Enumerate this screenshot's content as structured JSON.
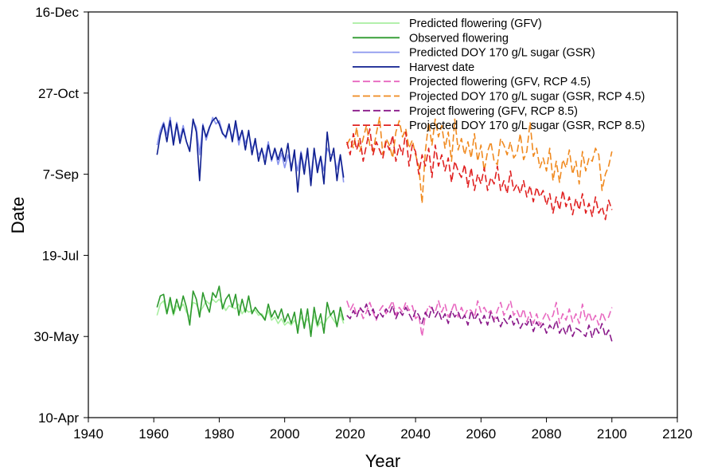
{
  "chart_data": {
    "type": "line",
    "title": "",
    "xlabel": "Year",
    "ylabel": "Date",
    "xlim": [
      1940,
      2120
    ],
    "xticks": [
      1940,
      1960,
      1980,
      2000,
      2020,
      2040,
      2060,
      2080,
      2100,
      2120
    ],
    "ylim_doy": [
      100,
      350
    ],
    "yticks": [
      {
        "doy": 100,
        "label": "10-Apr"
      },
      {
        "doy": 150,
        "label": "30-May"
      },
      {
        "doy": 200,
        "label": "19-Jul"
      },
      {
        "doy": 250,
        "label": "7-Sep"
      },
      {
        "doy": 300,
        "label": "27-Oct"
      },
      {
        "doy": 350,
        "label": "16-Dec"
      }
    ],
    "grid": false,
    "legend_position": "top-right",
    "series": [
      {
        "name": "Predicted flowering (GFV)",
        "color": "#a8eea0",
        "dash": "solid",
        "x": [
          1961,
          1962,
          1963,
          1964,
          1965,
          1966,
          1967,
          1968,
          1969,
          1970,
          1971,
          1972,
          1973,
          1974,
          1975,
          1976,
          1977,
          1978,
          1979,
          1980,
          1981,
          1982,
          1983,
          1984,
          1985,
          1986,
          1987,
          1988,
          1989,
          1990,
          1991,
          1992,
          1993,
          1994,
          1995,
          1996,
          1997,
          1998,
          1999,
          2000,
          2001,
          2002,
          2003,
          2004,
          2005,
          2006,
          2007,
          2008,
          2009,
          2010,
          2011,
          2012,
          2013,
          2014,
          2015,
          2016,
          2017,
          2018
        ],
        "y": [
          163,
          170,
          172,
          164,
          171,
          163,
          169,
          167,
          170,
          165,
          162,
          171,
          170,
          165,
          168,
          172,
          170,
          173,
          171,
          173,
          170,
          166,
          169,
          168,
          167,
          170,
          164,
          167,
          165,
          166,
          166,
          163,
          164,
          161,
          166,
          160,
          162,
          158,
          161,
          157,
          159,
          157,
          160,
          156,
          162,
          158,
          161,
          155,
          163,
          156,
          159,
          157,
          161,
          163,
          160,
          157,
          164,
          158
        ]
      },
      {
        "name": "Observed flowering",
        "color": "#2e9a2e",
        "dash": "solid",
        "x": [
          1961,
          1962,
          1963,
          1964,
          1965,
          1966,
          1967,
          1968,
          1969,
          1970,
          1971,
          1972,
          1973,
          1974,
          1975,
          1976,
          1977,
          1978,
          1979,
          1980,
          1981,
          1982,
          1983,
          1984,
          1985,
          1986,
          1987,
          1988,
          1989,
          1990,
          1991,
          1992,
          1993,
          1994,
          1995,
          1996,
          1997,
          1998,
          1999,
          2000,
          2001,
          2002,
          2003,
          2004,
          2005,
          2006,
          2007,
          2008,
          2009,
          2010,
          2011,
          2012,
          2013,
          2014,
          2015,
          2016,
          2017,
          2018
        ],
        "y": [
          168,
          175,
          176,
          164,
          174,
          164,
          173,
          166,
          175,
          168,
          157,
          178,
          173,
          162,
          177,
          170,
          165,
          177,
          174,
          181,
          167,
          173,
          176,
          168,
          176,
          163,
          173,
          165,
          175,
          164,
          168,
          165,
          163,
          160,
          170,
          162,
          166,
          161,
          167,
          159,
          164,
          158,
          165,
          152,
          167,
          155,
          167,
          150,
          168,
          157,
          164,
          152,
          171,
          163,
          166,
          156,
          168,
          160
        ]
      },
      {
        "name": "Predicted DOY 170 g/L sugar (GSR)",
        "color": "#8a95ee",
        "dash": "solid",
        "x": [
          1961,
          1962,
          1963,
          1964,
          1965,
          1966,
          1967,
          1968,
          1969,
          1970,
          1971,
          1972,
          1973,
          1974,
          1975,
          1976,
          1977,
          1978,
          1979,
          1980,
          1981,
          1982,
          1983,
          1984,
          1985,
          1986,
          1987,
          1988,
          1989,
          1990,
          1991,
          1992,
          1993,
          1994,
          1995,
          1996,
          1997,
          1998,
          1999,
          2000,
          2001,
          2002,
          2003,
          2004,
          2005,
          2006,
          2007,
          2008,
          2009,
          2010,
          2011,
          2012,
          2013,
          2014,
          2015,
          2016,
          2017,
          2018
        ],
        "y": [
          268,
          277,
          282,
          274,
          285,
          270,
          282,
          272,
          280,
          270,
          265,
          283,
          279,
          262,
          281,
          271,
          278,
          285,
          281,
          283,
          276,
          272,
          279,
          273,
          280,
          268,
          277,
          269,
          275,
          266,
          269,
          262,
          265,
          260,
          270,
          258,
          265,
          256,
          263,
          254,
          262,
          255,
          262,
          252,
          264,
          254,
          263,
          249,
          265,
          254,
          261,
          252,
          266,
          262,
          262,
          253,
          262,
          245
        ]
      },
      {
        "name": "Harvest date",
        "color": "#102090",
        "dash": "solid",
        "x": [
          1961,
          1962,
          1963,
          1964,
          1965,
          1966,
          1967,
          1968,
          1969,
          1970,
          1971,
          1972,
          1973,
          1974,
          1975,
          1976,
          1977,
          1978,
          1979,
          1980,
          1981,
          1982,
          1983,
          1984,
          1985,
          1986,
          1987,
          1988,
          1989,
          1990,
          1991,
          1992,
          1993,
          1994,
          1995,
          1996,
          1997,
          1998,
          1999,
          2000,
          2001,
          2002,
          2003,
          2004,
          2005,
          2006,
          2007,
          2008,
          2009,
          2010,
          2011,
          2012,
          2013,
          2014,
          2015,
          2016,
          2017,
          2018
        ],
        "y": [
          262,
          274,
          281,
          270,
          283,
          268,
          281,
          269,
          278,
          270,
          264,
          284,
          276,
          246,
          280,
          273,
          279,
          283,
          285,
          281,
          275,
          273,
          281,
          270,
          283,
          271,
          277,
          265,
          277,
          262,
          272,
          258,
          266,
          256,
          268,
          259,
          266,
          259,
          266,
          258,
          269,
          252,
          265,
          239,
          263,
          250,
          266,
          243,
          266,
          251,
          261,
          244,
          276,
          258,
          266,
          246,
          262,
          248
        ]
      },
      {
        "name": "Projected flowering (GFV, RCP 4.5)",
        "color": "#e868c0",
        "dash": "dashed",
        "x": [
          2019,
          2020,
          2021,
          2022,
          2023,
          2024,
          2025,
          2026,
          2027,
          2028,
          2029,
          2030,
          2031,
          2032,
          2033,
          2034,
          2035,
          2036,
          2037,
          2038,
          2039,
          2040,
          2041,
          2042,
          2043,
          2044,
          2045,
          2046,
          2047,
          2048,
          2049,
          2050,
          2051,
          2052,
          2053,
          2054,
          2055,
          2056,
          2057,
          2058,
          2059,
          2060,
          2061,
          2062,
          2063,
          2064,
          2065,
          2066,
          2067,
          2068,
          2069,
          2070,
          2071,
          2072,
          2073,
          2074,
          2075,
          2076,
          2077,
          2078,
          2079,
          2080,
          2081,
          2082,
          2083,
          2084,
          2085,
          2086,
          2087,
          2088,
          2089,
          2090,
          2091,
          2092,
          2093,
          2094,
          2095,
          2096,
          2097,
          2098,
          2099,
          2100
        ],
        "y": [
          172,
          166,
          170,
          163,
          167,
          161,
          165,
          171,
          165,
          160,
          166,
          169,
          164,
          168,
          172,
          163,
          168,
          165,
          171,
          166,
          169,
          161,
          163,
          150,
          163,
          169,
          167,
          165,
          172,
          165,
          170,
          162,
          166,
          171,
          162,
          168,
          163,
          167,
          166,
          162,
          172,
          165,
          168,
          164,
          166,
          160,
          166,
          171,
          163,
          167,
          172,
          163,
          166,
          161,
          167,
          159,
          165,
          158,
          164,
          157,
          161,
          165,
          160,
          163,
          171,
          158,
          164,
          160,
          167,
          159,
          164,
          158,
          170,
          160,
          165,
          159,
          163,
          157,
          165,
          160,
          162,
          168
        ]
      },
      {
        "name": "Projected DOY 170 g/L sugar (GSR, RCP 4.5)",
        "color": "#f08a20",
        "dash": "dashed",
        "x": [
          2019,
          2020,
          2021,
          2022,
          2023,
          2024,
          2025,
          2026,
          2027,
          2028,
          2029,
          2030,
          2031,
          2032,
          2033,
          2034,
          2035,
          2036,
          2037,
          2038,
          2039,
          2040,
          2041,
          2042,
          2043,
          2044,
          2045,
          2046,
          2047,
          2048,
          2049,
          2050,
          2051,
          2052,
          2053,
          2054,
          2055,
          2056,
          2057,
          2058,
          2059,
          2060,
          2061,
          2062,
          2063,
          2064,
          2065,
          2066,
          2067,
          2068,
          2069,
          2070,
          2071,
          2072,
          2073,
          2074,
          2075,
          2076,
          2077,
          2078,
          2079,
          2080,
          2081,
          2082,
          2083,
          2084,
          2085,
          2086,
          2087,
          2088,
          2089,
          2090,
          2091,
          2092,
          2093,
          2094,
          2095,
          2096,
          2097,
          2098,
          2099,
          2100
        ],
        "y": [
          268,
          272,
          266,
          279,
          264,
          272,
          280,
          268,
          264,
          275,
          285,
          262,
          272,
          268,
          260,
          276,
          283,
          273,
          278,
          266,
          271,
          262,
          255,
          232,
          264,
          282,
          268,
          284,
          273,
          280,
          266,
          276,
          258,
          284,
          265,
          272,
          262,
          270,
          260,
          275,
          258,
          268,
          252,
          264,
          270,
          258,
          256,
          272,
          268,
          262,
          270,
          260,
          263,
          275,
          259,
          264,
          282,
          261,
          266,
          254,
          260,
          252,
          266,
          246,
          258,
          245,
          259,
          254,
          265,
          250,
          258,
          244,
          264,
          252,
          260,
          258,
          266,
          262,
          240,
          250,
          255,
          264
        ]
      },
      {
        "name": "Project flowering (GFV, RCP 8.5)",
        "color": "#8a1a8a",
        "dash": "dashed",
        "x": [
          2019,
          2020,
          2021,
          2022,
          2023,
          2024,
          2025,
          2026,
          2027,
          2028,
          2029,
          2030,
          2031,
          2032,
          2033,
          2034,
          2035,
          2036,
          2037,
          2038,
          2039,
          2040,
          2041,
          2042,
          2043,
          2044,
          2045,
          2046,
          2047,
          2048,
          2049,
          2050,
          2051,
          2052,
          2053,
          2054,
          2055,
          2056,
          2057,
          2058,
          2059,
          2060,
          2061,
          2062,
          2063,
          2064,
          2065,
          2066,
          2067,
          2068,
          2069,
          2070,
          2071,
          2072,
          2073,
          2074,
          2075,
          2076,
          2077,
          2078,
          2079,
          2080,
          2081,
          2082,
          2083,
          2084,
          2085,
          2086,
          2087,
          2088,
          2089,
          2090,
          2091,
          2092,
          2093,
          2094,
          2095,
          2096,
          2097,
          2098,
          2099,
          2100
        ],
        "y": [
          163,
          161,
          166,
          162,
          168,
          165,
          170,
          163,
          167,
          161,
          165,
          162,
          167,
          164,
          169,
          161,
          166,
          163,
          168,
          164,
          160,
          166,
          163,
          158,
          165,
          161,
          168,
          162,
          166,
          160,
          164,
          158,
          166,
          162,
          165,
          160,
          163,
          157,
          166,
          160,
          164,
          158,
          163,
          157,
          165,
          159,
          162,
          156,
          161,
          158,
          163,
          157,
          161,
          155,
          159,
          157,
          161,
          153,
          159,
          155,
          158,
          152,
          157,
          154,
          160,
          152,
          156,
          151,
          158,
          150,
          155,
          154,
          152,
          150,
          157,
          149,
          156,
          152,
          158,
          150,
          154,
          147
        ]
      },
      {
        "name": "Projected DOY 170 g/L sugar (GSR, RCP 8.5)",
        "color": "#e02020",
        "dash": "dashed",
        "x": [
          2019,
          2020,
          2021,
          2022,
          2023,
          2024,
          2025,
          2026,
          2027,
          2028,
          2029,
          2030,
          2031,
          2032,
          2033,
          2034,
          2035,
          2036,
          2037,
          2038,
          2039,
          2040,
          2041,
          2042,
          2043,
          2044,
          2045,
          2046,
          2047,
          2048,
          2049,
          2050,
          2051,
          2052,
          2053,
          2054,
          2055,
          2056,
          2057,
          2058,
          2059,
          2060,
          2061,
          2062,
          2063,
          2064,
          2065,
          2066,
          2067,
          2068,
          2069,
          2070,
          2071,
          2072,
          2073,
          2074,
          2075,
          2076,
          2077,
          2078,
          2079,
          2080,
          2081,
          2082,
          2083,
          2084,
          2085,
          2086,
          2087,
          2088,
          2089,
          2090,
          2091,
          2092,
          2093,
          2094,
          2095,
          2096,
          2097,
          2098,
          2099,
          2100
        ],
        "y": [
          270,
          262,
          275,
          265,
          272,
          258,
          268,
          278,
          262,
          270,
          265,
          260,
          270,
          265,
          274,
          258,
          268,
          262,
          276,
          255,
          268,
          264,
          250,
          262,
          255,
          266,
          248,
          268,
          255,
          262,
          252,
          260,
          245,
          258,
          252,
          248,
          256,
          242,
          254,
          240,
          250,
          244,
          254,
          240,
          248,
          244,
          255,
          240,
          246,
          238,
          252,
          240,
          244,
          238,
          246,
          236,
          243,
          233,
          242,
          236,
          240,
          231,
          238,
          226,
          236,
          228,
          240,
          230,
          236,
          225,
          235,
          228,
          238,
          226,
          232,
          224,
          236,
          226,
          230,
          222,
          234,
          228
        ]
      }
    ]
  }
}
